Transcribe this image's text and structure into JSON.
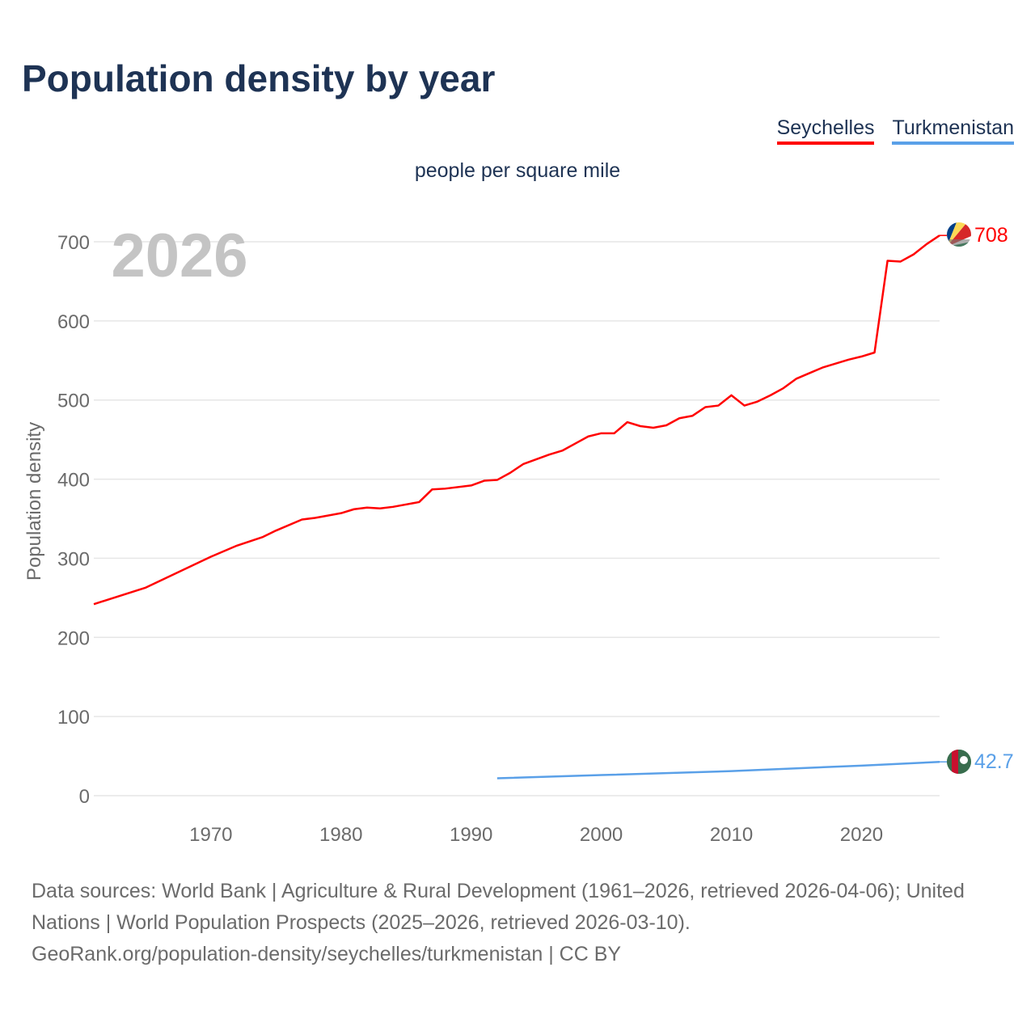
{
  "title": "Population density by year",
  "legend": [
    {
      "name": "Seychelles",
      "color": "#ff0000"
    },
    {
      "name": "Turkmenistan",
      "color": "#5aa0e8"
    }
  ],
  "subtitle": "people per square mile",
  "year_watermark": "2026",
  "source_line1": "Data sources: World Bank | Agriculture & Rural Development (1961–2026, retrieved 2026-04-06); United Nations | World Population Prospects (2025–2026, retrieved 2026-03-10).",
  "source_line2": "GeoRank.org/population-density/seychelles/turkmenistan | CC BY",
  "chart_data": {
    "type": "line",
    "title": "Population density by year",
    "ylabel": "Population density",
    "xlabel": "",
    "unit": "people per square mile",
    "xlim": [
      1961,
      2026
    ],
    "ylim": [
      0,
      700
    ],
    "xticks": [
      1970,
      1980,
      1990,
      2000,
      2010,
      2020
    ],
    "yticks": [
      0,
      100,
      200,
      300,
      400,
      500,
      600,
      700
    ],
    "grid": true,
    "legend_position": "top-right",
    "series": [
      {
        "name": "Seychelles",
        "color": "#ff0000",
        "end_label": "708",
        "x": [
          1961,
          1965,
          1970,
          1972,
          1974,
          1975,
          1977,
          1978,
          1980,
          1981,
          1982,
          1983,
          1984,
          1986,
          1987,
          1988,
          1990,
          1991,
          1992,
          1993,
          1994,
          1995,
          1996,
          1997,
          1998,
          1999,
          2000,
          2001,
          2002,
          2003,
          2004,
          2005,
          2006,
          2007,
          2008,
          2009,
          2010,
          2011,
          2012,
          2013,
          2014,
          2015,
          2016,
          2017,
          2018,
          2019,
          2020,
          2021,
          2022,
          2023,
          2024,
          2025,
          2026
        ],
        "y": [
          242,
          263,
          302,
          316,
          327,
          335,
          349,
          351,
          357,
          362,
          364,
          363,
          365,
          371,
          387,
          388,
          392,
          398,
          399,
          408,
          419,
          425,
          431,
          436,
          445,
          454,
          458,
          458,
          472,
          467,
          465,
          468,
          477,
          480,
          491,
          493,
          506,
          493,
          498,
          506,
          515,
          527,
          534,
          541,
          546,
          551,
          555,
          560,
          676,
          675,
          684,
          697,
          708
        ]
      },
      {
        "name": "Turkmenistan",
        "color": "#5aa0e8",
        "end_label": "42.7",
        "x": [
          1992,
          2000,
          2010,
          2020,
          2026
        ],
        "y": [
          22,
          26,
          31,
          38,
          42.7
        ]
      }
    ]
  }
}
